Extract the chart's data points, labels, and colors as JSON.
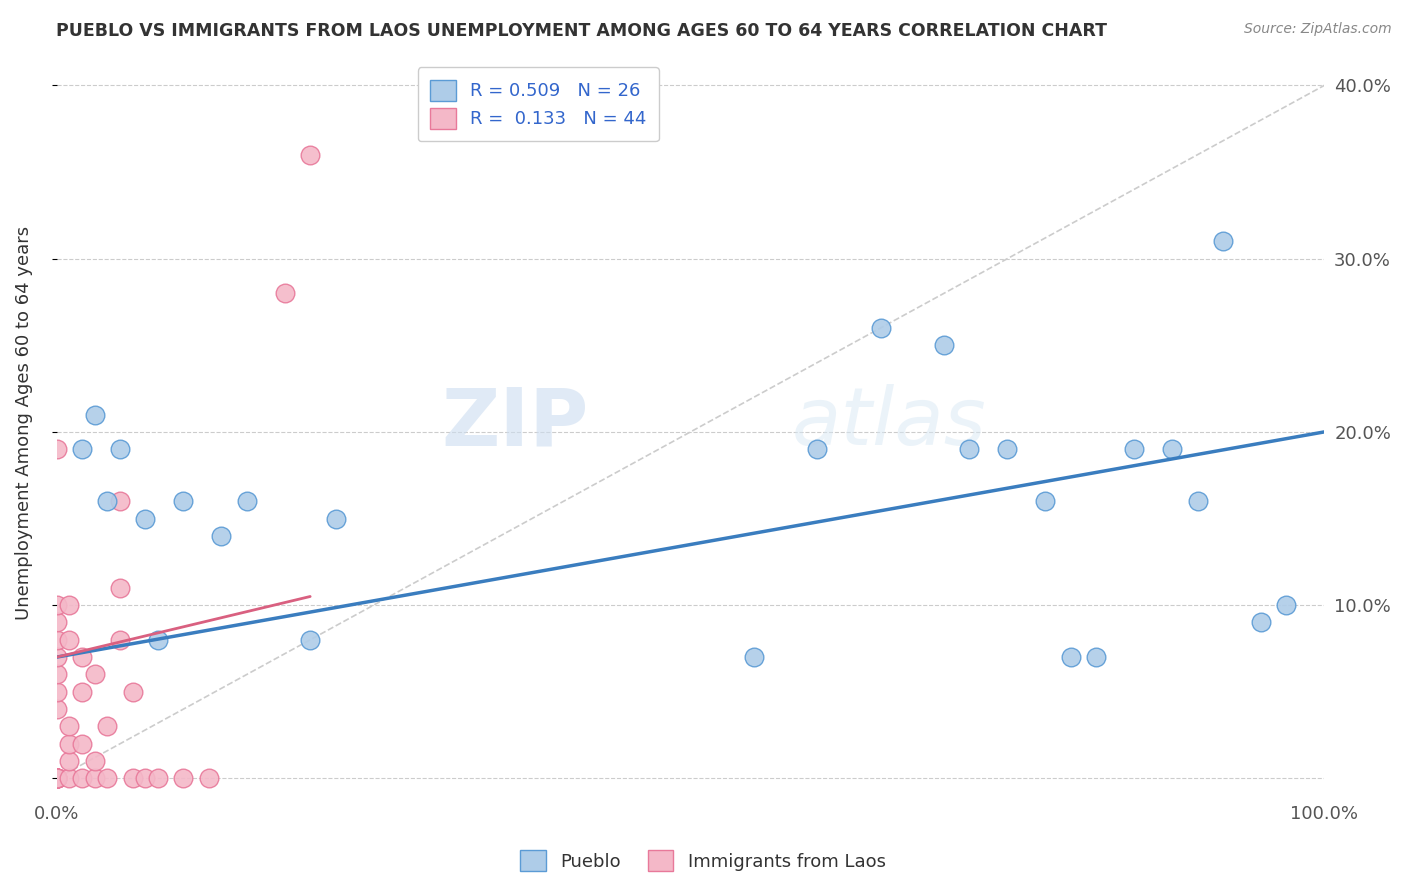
{
  "title": "PUEBLO VS IMMIGRANTS FROM LAOS UNEMPLOYMENT AMONG AGES 60 TO 64 YEARS CORRELATION CHART",
  "source": "Source: ZipAtlas.com",
  "ylabel": "Unemployment Among Ages 60 to 64 years",
  "legend_bottom": [
    "Pueblo",
    "Immigrants from Laos"
  ],
  "pueblo_R": "0.509",
  "pueblo_N": "26",
  "laos_R": "0.133",
  "laos_N": "44",
  "xlim": [
    0,
    100
  ],
  "ylim": [
    -1,
    42
  ],
  "yticks": [
    0,
    10,
    20,
    30,
    40
  ],
  "pueblo_color": "#aecce8",
  "pueblo_edge_color": "#5b9bd5",
  "laos_color": "#f4b8c8",
  "laos_edge_color": "#e8799a",
  "pueblo_line_color": "#3a7dbf",
  "laos_line_color": "#d96080",
  "ref_line_color": "#cccccc",
  "pueblo_scatter_x": [
    2,
    3,
    4,
    5,
    7,
    8,
    10,
    13,
    15,
    20,
    22,
    55,
    60,
    65,
    70,
    72,
    75,
    78,
    80,
    82,
    85,
    88,
    90,
    92,
    95,
    97
  ],
  "pueblo_scatter_y": [
    19,
    21,
    16,
    19,
    15,
    8,
    16,
    14,
    16,
    8,
    15,
    7,
    19,
    26,
    25,
    19,
    19,
    16,
    7,
    7,
    19,
    19,
    16,
    31,
    9,
    10
  ],
  "laos_scatter_x": [
    0,
    0,
    0,
    0,
    0,
    0,
    0,
    0,
    0,
    0,
    0,
    0,
    0,
    0,
    0,
    0,
    0,
    0,
    1,
    1,
    1,
    1,
    1,
    1,
    2,
    2,
    2,
    2,
    3,
    3,
    3,
    4,
    4,
    5,
    5,
    5,
    6,
    6,
    7,
    8,
    10,
    12,
    18,
    20
  ],
  "laos_scatter_y": [
    0,
    0,
    0,
    0,
    0,
    0,
    0,
    0,
    0,
    0,
    4,
    5,
    6,
    7,
    8,
    9,
    10,
    19,
    0,
    1,
    2,
    3,
    8,
    10,
    0,
    2,
    5,
    7,
    0,
    1,
    6,
    0,
    3,
    8,
    11,
    16,
    0,
    5,
    0,
    0,
    0,
    0,
    28,
    36
  ],
  "pueblo_line_x0": 0,
  "pueblo_line_y0": 7.0,
  "pueblo_line_x1": 100,
  "pueblo_line_y1": 20.0,
  "laos_line_x0": 0,
  "laos_line_y0": 7.0,
  "laos_line_x1": 20,
  "laos_line_y1": 10.5,
  "watermark_zip": "ZIP",
  "watermark_atlas": "atlas",
  "dpi": 100,
  "figwidth": 14.06,
  "figheight": 8.92
}
